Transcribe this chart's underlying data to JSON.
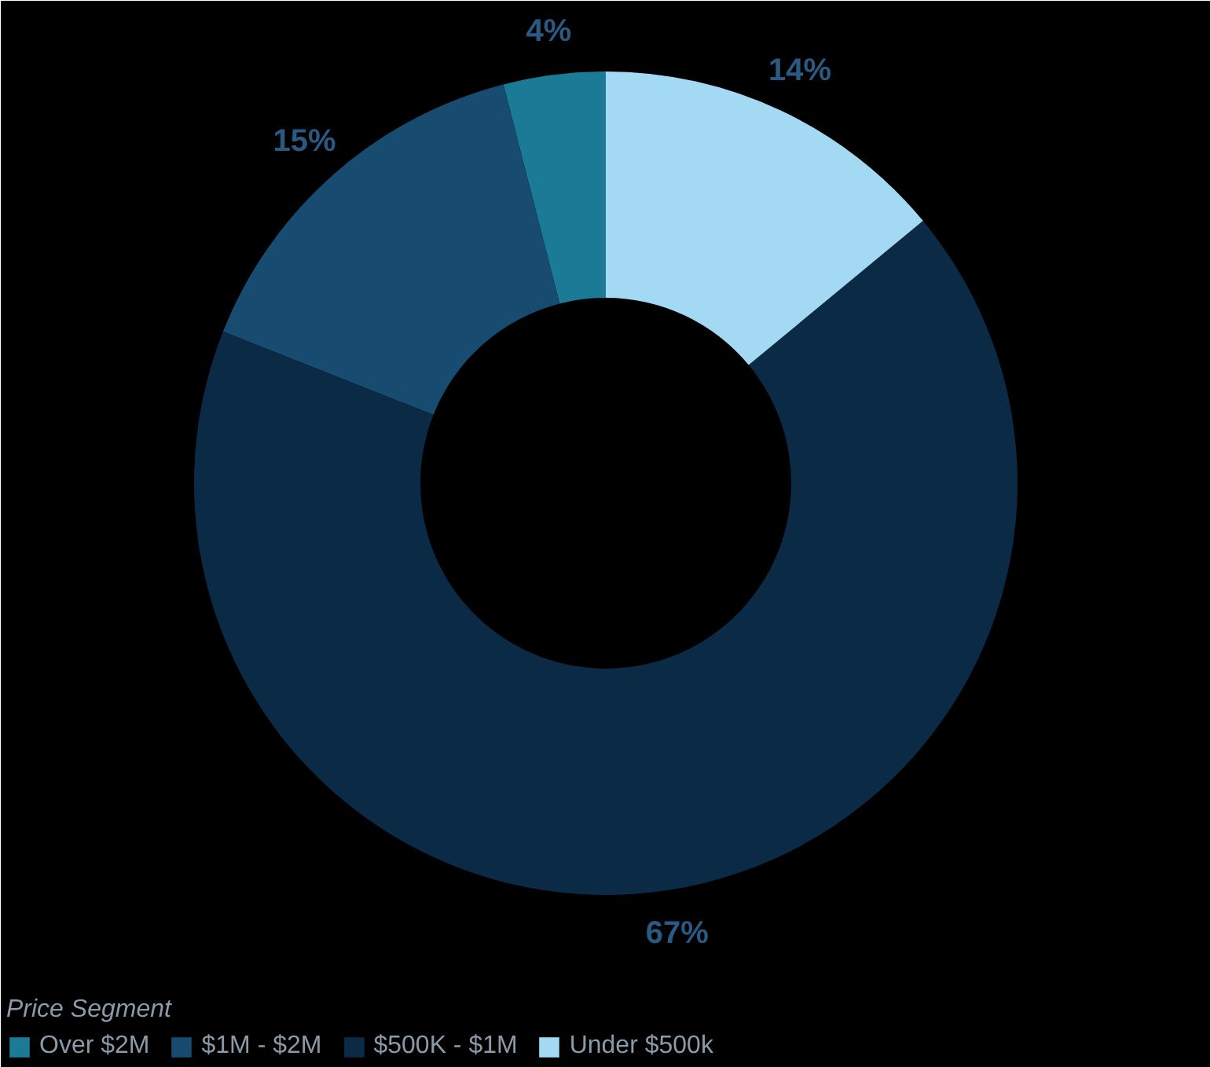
{
  "chart_data": {
    "type": "donut",
    "legend_title": "Price Segment",
    "categories": [
      "Over $2M",
      "$1M - $2M",
      "$500K - $1M",
      "Under $500k"
    ],
    "values": [
      4,
      15,
      67,
      14
    ],
    "colors": [
      "#1b7b97",
      "#174b6f",
      "#0b2a45",
      "#a3d9f2"
    ],
    "value_labels": [
      "4%",
      "15%",
      "67%",
      "14%"
    ],
    "legend": "bottom left"
  }
}
